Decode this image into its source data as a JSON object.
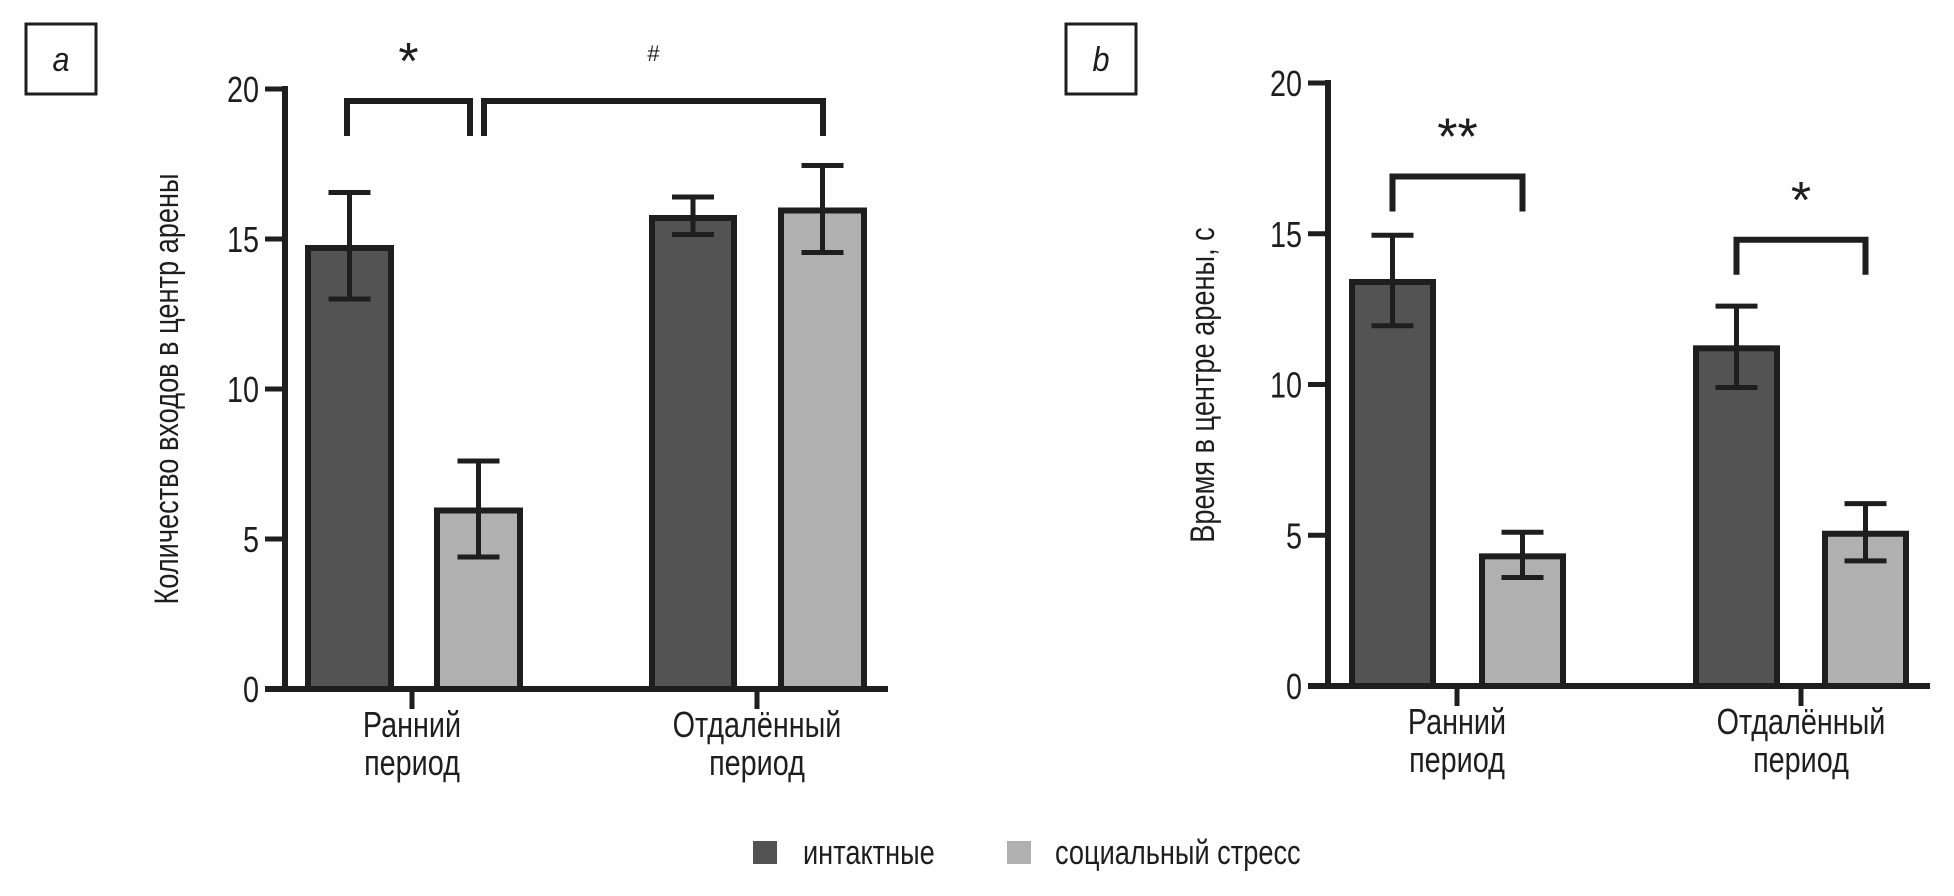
{
  "colors": {
    "intact": "#545354",
    "stress": "#b0b0b0",
    "stroke": "#1e1e1e"
  },
  "legend": [
    {
      "label": "интактные",
      "color": "#545354"
    },
    {
      "label": "социальный стресс",
      "color": "#b0b0b0"
    }
  ],
  "chart_data": [
    {
      "type": "bar",
      "panel_label": "a",
      "title": "",
      "xlabel": "",
      "ylabel": "Количество входов в центр арены",
      "ylim": [
        0,
        20
      ],
      "yticks": [
        "0",
        "5",
        "10",
        "15",
        "20"
      ],
      "categories": [
        [
          "Ранний",
          "период"
        ],
        [
          "Отдалённый",
          "период"
        ]
      ],
      "series": [
        {
          "name": "интактные",
          "values": [
            14.7,
            15.7
          ],
          "err_low": [
            13.0,
            15.15
          ],
          "err_high": [
            16.55,
            16.4
          ]
        },
        {
          "name": "социальный стресс",
          "values": [
            5.95,
            15.95
          ],
          "err_low": [
            4.4,
            14.55
          ],
          "err_high": [
            7.6,
            17.45
          ]
        }
      ],
      "annotations": [
        {
          "text": "*",
          "from": [
            0,
            0
          ],
          "to": [
            0,
            1
          ],
          "level": 19.6
        },
        {
          "text": "#",
          "from": [
            0,
            1
          ],
          "to": [
            1,
            1
          ],
          "level": 19.6
        }
      ]
    },
    {
      "type": "bar",
      "panel_label": "b",
      "title": "",
      "xlabel": "",
      "ylabel": "Время в центре арены, с",
      "ylim": [
        0,
        20
      ],
      "yticks": [
        "0",
        "5",
        "10",
        "15",
        "20"
      ],
      "categories": [
        [
          "Ранний",
          "период"
        ],
        [
          "Отдалённый",
          "период"
        ]
      ],
      "series": [
        {
          "name": "интактные",
          "values": [
            13.4,
            11.2
          ],
          "err_low": [
            11.95,
            9.9
          ],
          "err_high": [
            14.95,
            12.6
          ]
        },
        {
          "name": "социальный стресс",
          "values": [
            4.3,
            5.05
          ],
          "err_low": [
            3.6,
            4.15
          ],
          "err_high": [
            5.1,
            6.05
          ]
        }
      ],
      "annotations": [
        {
          "text": "**",
          "from": [
            0,
            0
          ],
          "to": [
            0,
            1
          ],
          "level": 16.9
        },
        {
          "text": "*",
          "from": [
            1,
            0
          ],
          "to": [
            1,
            1
          ],
          "level": 14.8
        }
      ]
    }
  ]
}
